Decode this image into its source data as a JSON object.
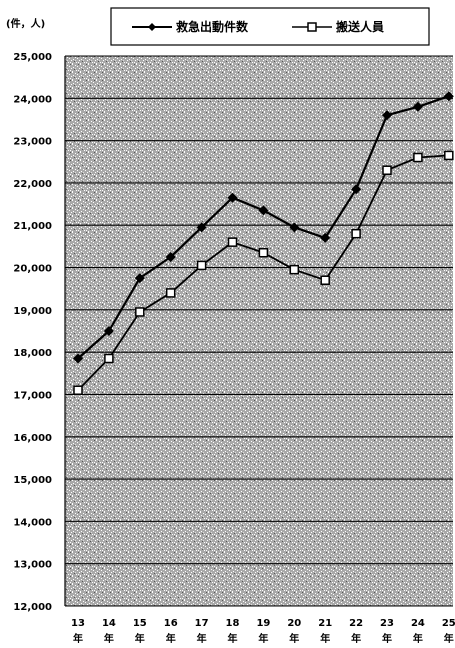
{
  "chart_data": {
    "type": "line",
    "unit_label": "(件，人)",
    "categories": [
      {
        "num": "13",
        "suffix": "年"
      },
      {
        "num": "14",
        "suffix": "年"
      },
      {
        "num": "15",
        "suffix": "年"
      },
      {
        "num": "16",
        "suffix": "年"
      },
      {
        "num": "17",
        "suffix": "年"
      },
      {
        "num": "18",
        "suffix": "年"
      },
      {
        "num": "19",
        "suffix": "年"
      },
      {
        "num": "20",
        "suffix": "年"
      },
      {
        "num": "21",
        "suffix": "年"
      },
      {
        "num": "22",
        "suffix": "年"
      },
      {
        "num": "23",
        "suffix": "年"
      },
      {
        "num": "24",
        "suffix": "年"
      },
      {
        "num": "25",
        "suffix": "年"
      }
    ],
    "y_ticks": [
      "12,000",
      "13,000",
      "14,000",
      "15,000",
      "16,000",
      "17,000",
      "18,000",
      "19,000",
      "20,000",
      "21,000",
      "22,000",
      "23,000",
      "24,000",
      "25,000"
    ],
    "ylim": [
      12000,
      25000
    ],
    "grid": true,
    "legend_position": "top",
    "series": [
      {
        "name": "救急出動件数",
        "marker": "diamond",
        "color": "#000000",
        "values": [
          17850,
          18500,
          19750,
          20250,
          20950,
          21650,
          21350,
          20950,
          20700,
          21850,
          23600,
          23800,
          24050
        ]
      },
      {
        "name": "搬送人員",
        "marker": "square",
        "color": "#000000",
        "values": [
          17100,
          17850,
          18950,
          19400,
          20050,
          20600,
          20350,
          19950,
          19700,
          20800,
          22300,
          22600,
          22650
        ]
      }
    ]
  }
}
